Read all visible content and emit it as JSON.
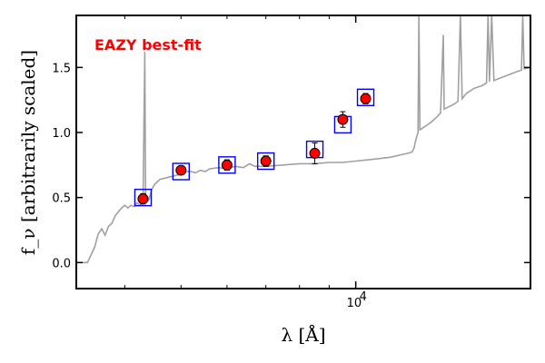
{
  "chart_data": {
    "type": "scatter",
    "title": "",
    "xlabel": "λ [Å]",
    "ylabel": "f_ν [arbitrarily scaled]",
    "xscale": "log",
    "xlim": [
      3300,
      20000
    ],
    "ylim": [
      -0.2,
      1.9
    ],
    "yticks": [
      0.0,
      0.5,
      1.0,
      1.5
    ],
    "ytick_labels": [
      "0.0",
      "0.5",
      "1.0",
      "1.5"
    ],
    "xticks": [
      10000
    ],
    "xtick_labels": [
      "10^4"
    ],
    "x_minor_ticks": [
      4000,
      5000,
      6000,
      7000,
      8000,
      9000,
      20000
    ],
    "annotation": {
      "text": "EAZY best-fit",
      "color": "#ff0000",
      "position": "top-left"
    },
    "colors": {
      "template": "#a0a0a0",
      "points": "#ff0000",
      "boxes": "#0000ff"
    },
    "series": [
      {
        "kind": "template-line",
        "points": [
          [
            3350,
            0.0
          ],
          [
            3450,
            0.0
          ],
          [
            3550,
            0.12
          ],
          [
            3600,
            0.22
          ],
          [
            3650,
            0.26
          ],
          [
            3700,
            0.21
          ],
          [
            3750,
            0.28
          ],
          [
            3800,
            0.3
          ],
          [
            3850,
            0.36
          ],
          [
            3900,
            0.39
          ],
          [
            3950,
            0.42
          ],
          [
            4000,
            0.44
          ],
          [
            4050,
            0.42
          ],
          [
            4100,
            0.44
          ],
          [
            4150,
            0.43
          ],
          [
            4200,
            0.46
          ],
          [
            4250,
            0.44
          ],
          [
            4300,
            0.47
          ],
          [
            4330,
            1.62
          ],
          [
            4345,
            0.46
          ],
          [
            4400,
            0.48
          ],
          [
            4450,
            0.56
          ],
          [
            4500,
            0.6
          ],
          [
            4550,
            0.62
          ],
          [
            4600,
            0.64
          ],
          [
            4700,
            0.65
          ],
          [
            4800,
            0.66
          ],
          [
            4900,
            0.67
          ],
          [
            5000,
            0.68
          ],
          [
            5100,
            0.7
          ],
          [
            5200,
            0.7
          ],
          [
            5300,
            0.69
          ],
          [
            5400,
            0.71
          ],
          [
            5500,
            0.7
          ],
          [
            5600,
            0.72
          ],
          [
            5800,
            0.73
          ],
          [
            6000,
            0.72
          ],
          [
            6200,
            0.74
          ],
          [
            6400,
            0.73
          ],
          [
            6563,
            0.76
          ],
          [
            6700,
            0.74
          ],
          [
            7000,
            0.74
          ],
          [
            7500,
            0.75
          ],
          [
            8000,
            0.76
          ],
          [
            8500,
            0.76
          ],
          [
            9000,
            0.77
          ],
          [
            9500,
            0.77
          ],
          [
            10000,
            0.78
          ],
          [
            10500,
            0.79
          ],
          [
            11000,
            0.8
          ],
          [
            11500,
            0.81
          ],
          [
            12000,
            0.83
          ],
          [
            12300,
            0.84
          ],
          [
            12500,
            0.85
          ],
          [
            12600,
            0.88
          ],
          [
            12700,
            0.95
          ],
          [
            12800,
            1.0
          ],
          [
            12850,
            1.9
          ],
          [
            12900,
            1.02
          ],
          [
            13200,
            1.05
          ],
          [
            13500,
            1.08
          ],
          [
            13800,
            1.12
          ],
          [
            14000,
            1.15
          ],
          [
            14150,
            1.75
          ],
          [
            14200,
            1.18
          ],
          [
            14500,
            1.2
          ],
          [
            14800,
            1.22
          ],
          [
            15000,
            1.24
          ],
          [
            15150,
            1.9
          ],
          [
            15250,
            1.26
          ],
          [
            15500,
            1.3
          ],
          [
            16000,
            1.34
          ],
          [
            16500,
            1.36
          ],
          [
            16800,
            1.38
          ],
          [
            16900,
            1.9
          ],
          [
            17000,
            1.39
          ],
          [
            17150,
            1.9
          ],
          [
            17300,
            1.4
          ],
          [
            18000,
            1.43
          ],
          [
            18500,
            1.45
          ],
          [
            19000,
            1.47
          ],
          [
            19300,
            1.48
          ],
          [
            19400,
            1.9
          ],
          [
            19500,
            1.49
          ],
          [
            20000,
            1.5
          ]
        ]
      },
      {
        "kind": "observed-points",
        "x": [
          4300,
          5000,
          6000,
          7000,
          8500,
          9500,
          10400
        ],
        "y": [
          0.49,
          0.71,
          0.75,
          0.78,
          0.84,
          1.1,
          1.26
        ],
        "yerr": [
          0.04,
          0.03,
          0.04,
          0.04,
          0.08,
          0.06,
          0.04
        ]
      },
      {
        "kind": "model-boxes",
        "x": [
          4300,
          5000,
          6000,
          7000,
          8500,
          9500,
          10400
        ],
        "y": [
          0.5,
          0.7,
          0.75,
          0.78,
          0.87,
          1.06,
          1.27
        ]
      }
    ]
  }
}
